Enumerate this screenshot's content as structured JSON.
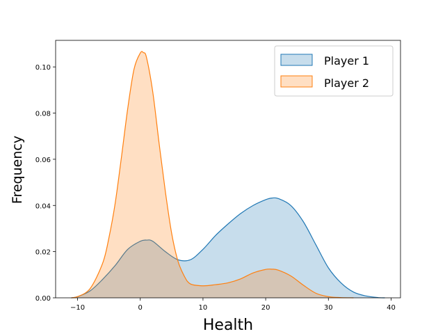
{
  "chart_data": {
    "type": "area",
    "title": "",
    "xlabel": "Health",
    "ylabel": "Frequency",
    "xlim": [
      -13.5,
      41.5
    ],
    "ylim": [
      0,
      0.1115
    ],
    "grid": false,
    "legend_placement": "top-right",
    "x_ticks": [
      -10,
      0,
      10,
      20,
      30,
      40
    ],
    "x_tick_labels": [
      "−10",
      "0",
      "10",
      "20",
      "30",
      "40"
    ],
    "y_ticks": [
      0.0,
      0.02,
      0.04,
      0.06,
      0.08,
      0.1
    ],
    "y_tick_labels": [
      "0.00",
      "0.02",
      "0.04",
      "0.06",
      "0.08",
      "0.10"
    ],
    "series": [
      {
        "name": "Player 1",
        "color": "#1f77b4",
        "fill": "#1f77b4",
        "fill_opacity": 0.25,
        "x": [
          -11,
          -10,
          -8,
          -6,
          -4,
          -2,
          0,
          1,
          2,
          4,
          6,
          8,
          10,
          12,
          14,
          16,
          18,
          20,
          21,
          22,
          24,
          26,
          28,
          30,
          32,
          34,
          36,
          38,
          39
        ],
        "values": [
          0.0,
          0.0005,
          0.003,
          0.008,
          0.014,
          0.021,
          0.0245,
          0.025,
          0.0245,
          0.02,
          0.0165,
          0.0165,
          0.021,
          0.027,
          0.032,
          0.0365,
          0.04,
          0.0425,
          0.0432,
          0.043,
          0.04,
          0.033,
          0.023,
          0.013,
          0.0065,
          0.0025,
          0.0008,
          0.0001,
          0.0
        ]
      },
      {
        "name": "Player 2",
        "color": "#ff7f0e",
        "fill": "#ff7f0e",
        "fill_opacity": 0.25,
        "x": [
          -11,
          -10,
          -8,
          -6,
          -5,
          -4,
          -3,
          -2,
          -1,
          0,
          0.5,
          1,
          2,
          3,
          4,
          5,
          6,
          7,
          8,
          10,
          12,
          14,
          16,
          18,
          20,
          21,
          22,
          24,
          26,
          28,
          30,
          32,
          34
        ],
        "values": [
          0.0,
          0.0005,
          0.004,
          0.015,
          0.026,
          0.041,
          0.061,
          0.082,
          0.099,
          0.106,
          0.1062,
          0.104,
          0.089,
          0.067,
          0.046,
          0.028,
          0.016,
          0.0095,
          0.006,
          0.0052,
          0.0057,
          0.0065,
          0.0082,
          0.0108,
          0.0123,
          0.0124,
          0.012,
          0.0095,
          0.0055,
          0.002,
          0.0005,
          0.0001,
          0.0
        ]
      }
    ]
  }
}
